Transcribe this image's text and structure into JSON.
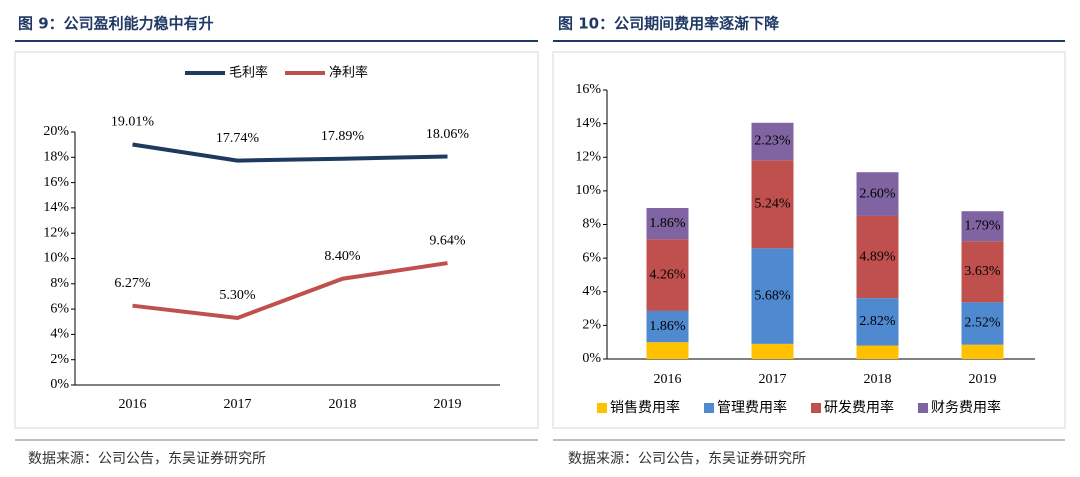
{
  "chart_data": [
    {
      "type": "line",
      "title": "图 9：公司盈利能力稳中有升",
      "source": "数据来源：公司公告，东吴证券研究所",
      "categories": [
        "2016",
        "2017",
        "2018",
        "2019"
      ],
      "series": [
        {
          "name": "毛利率",
          "color": "#1f3a5f",
          "values": [
            19.01,
            17.74,
            17.89,
            18.06
          ],
          "value_labels": [
            "19.01%",
            "17.74%",
            "17.89%",
            "18.06%"
          ]
        },
        {
          "name": "净利率",
          "color": "#c0504d",
          "values": [
            6.27,
            5.3,
            8.4,
            9.64
          ],
          "value_labels": [
            "6.27%",
            "5.30%",
            "8.40%",
            "9.64%"
          ]
        }
      ],
      "ylim": [
        0,
        20
      ],
      "yticks": [
        {
          "value": 0,
          "label": "0%"
        },
        {
          "value": 2,
          "label": "2%"
        },
        {
          "value": 4,
          "label": "4%"
        },
        {
          "value": 6,
          "label": "6%"
        },
        {
          "value": 8,
          "label": "8%"
        },
        {
          "value": 10,
          "label": "10%"
        },
        {
          "value": 12,
          "label": "12%"
        },
        {
          "value": 14,
          "label": "14%"
        },
        {
          "value": 16,
          "label": "16%"
        },
        {
          "value": 18,
          "label": "18%"
        },
        {
          "value": 20,
          "label": "20%"
        }
      ],
      "legend": "top"
    },
    {
      "type": "bar",
      "stacked": true,
      "title": "图 10：公司期间费用率逐渐下降",
      "source": "数据来源：公司公告，东吴证券研究所",
      "categories": [
        "2016",
        "2017",
        "2018",
        "2019"
      ],
      "series": [
        {
          "name": "销售费用率",
          "color": "#ffc000",
          "values": [
            1.0,
            0.9,
            0.8,
            0.85
          ]
        },
        {
          "name": "管理费用率",
          "color": "#4f8ad0",
          "values": [
            1.86,
            5.68,
            2.82,
            2.52
          ],
          "value_labels": [
            "1.86%",
            "5.68%",
            "2.82%",
            "2.52%"
          ]
        },
        {
          "name": "研发费用率",
          "color": "#c0504d",
          "values": [
            4.26,
            5.24,
            4.89,
            3.63
          ],
          "value_labels": [
            "4.26%",
            "5.24%",
            "4.89%",
            "3.63%"
          ]
        },
        {
          "name": "财务费用率",
          "color": "#8064a2",
          "values": [
            1.86,
            2.23,
            2.6,
            1.79
          ],
          "value_labels": [
            "1.86%",
            "2.23%",
            "2.60%",
            "1.79%"
          ]
        }
      ],
      "ylim": [
        0,
        16
      ],
      "yticks": [
        {
          "value": 0,
          "label": "0%"
        },
        {
          "value": 2,
          "label": "2%"
        },
        {
          "value": 4,
          "label": "4%"
        },
        {
          "value": 6,
          "label": "6%"
        },
        {
          "value": 8,
          "label": "8%"
        },
        {
          "value": 10,
          "label": "10%"
        },
        {
          "value": 12,
          "label": "12%"
        },
        {
          "value": 14,
          "label": "14%"
        },
        {
          "value": 16,
          "label": "16%"
        }
      ],
      "legend": "bottom"
    }
  ]
}
